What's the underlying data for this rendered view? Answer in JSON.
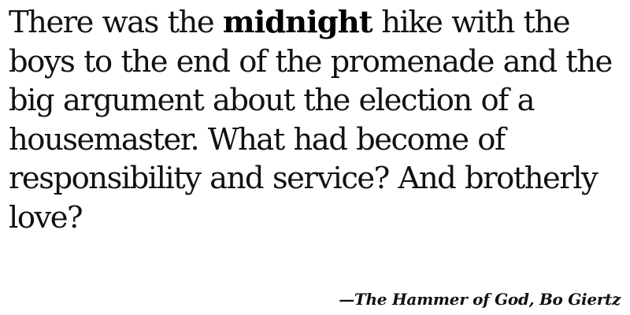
{
  "quote": {
    "text_before": "There was the ",
    "emphasis": "midnight",
    "text_after": " hike with the boys to the end of the promenade and the big argument about the election of a housemaster. What had become of responsibility and service? And brotherly love?"
  },
  "attribution": {
    "text": "—The Hammer of God, Bo Giertz"
  }
}
